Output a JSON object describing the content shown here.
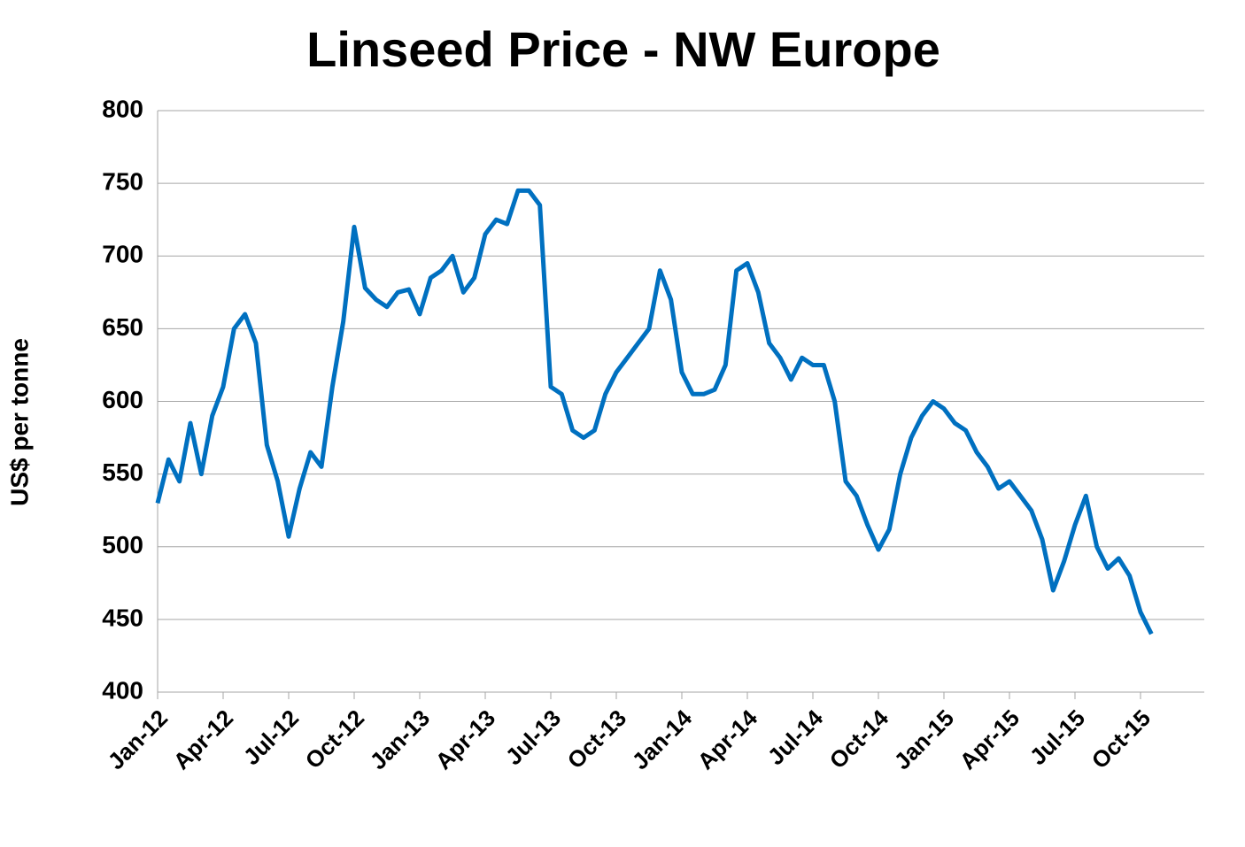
{
  "chart_data": {
    "type": "line",
    "title": "Linseed Price - NW Europe",
    "y_label": "US$ per tonne",
    "categories": [
      "Jan-12",
      null,
      null,
      null,
      null,
      null,
      "Apr-12",
      null,
      null,
      null,
      null,
      null,
      "Jul-12",
      null,
      null,
      null,
      null,
      null,
      "Oct-12",
      null,
      null,
      null,
      null,
      null,
      "Jan-13",
      null,
      null,
      null,
      null,
      null,
      "Apr-13",
      null,
      null,
      null,
      null,
      null,
      "Jul-13",
      null,
      null,
      null,
      null,
      null,
      "Oct-13",
      null,
      null,
      null,
      null,
      null,
      "Jan-14",
      null,
      null,
      null,
      null,
      null,
      "Apr-14",
      null,
      null,
      null,
      null,
      null,
      "Jul-14",
      null,
      null,
      null,
      null,
      null,
      "Oct-14",
      null,
      null,
      null,
      null,
      null,
      "Jan-15",
      null,
      null,
      null,
      null,
      null,
      "Apr-15",
      null,
      null,
      null,
      null,
      null,
      "Jul-15",
      null,
      null,
      null,
      null,
      null,
      "Oct-15",
      null
    ],
    "series": [
      {
        "name": "Linseed",
        "color": "#0070c0",
        "values": [
          530,
          560,
          545,
          585,
          550,
          590,
          610,
          650,
          660,
          640,
          570,
          545,
          507,
          540,
          565,
          555,
          610,
          655,
          720,
          678,
          670,
          665,
          675,
          677,
          660,
          685,
          690,
          700,
          675,
          685,
          715,
          725,
          722,
          745,
          745,
          735,
          610,
          605,
          580,
          575,
          580,
          605,
          620,
          630,
          640,
          650,
          690,
          670,
          620,
          605,
          605,
          608,
          625,
          690,
          695,
          675,
          640,
          630,
          615,
          630,
          625,
          625,
          600,
          545,
          535,
          515,
          498,
          512,
          550,
          575,
          590,
          600,
          595,
          585,
          580,
          565,
          555,
          540,
          545,
          535,
          525,
          505,
          470,
          490,
          515,
          535,
          500,
          485,
          492,
          480,
          455,
          440
        ]
      }
    ],
    "ylim": [
      400,
      800
    ],
    "yticks": [
      400,
      450,
      500,
      550,
      600,
      650,
      700,
      750,
      800
    ],
    "grid": true
  }
}
